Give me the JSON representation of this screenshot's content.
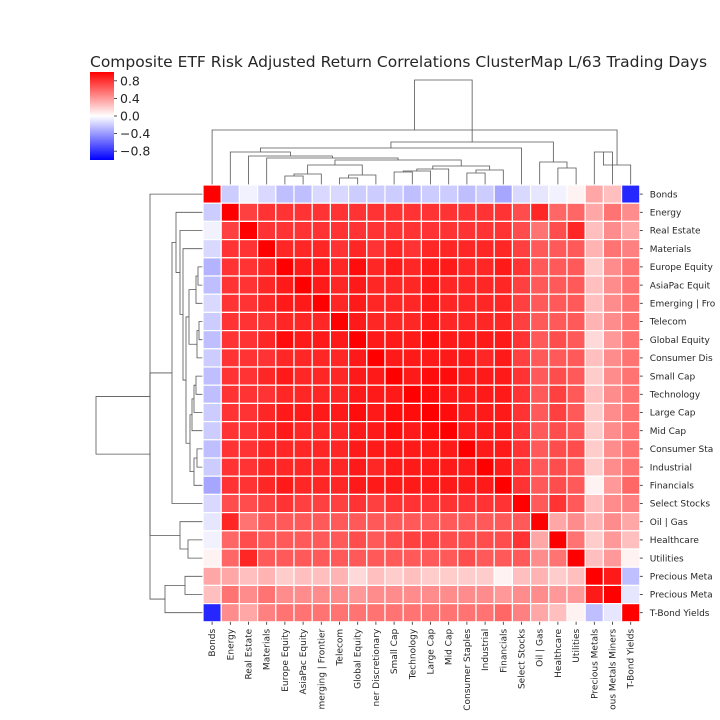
{
  "chart_data": {
    "type": "heatmap",
    "title": "Composite ETF Risk Adjusted Return Correlations ClusterMap L/63 Trading Days",
    "labels": [
      "Bonds",
      "Energy",
      "Real Estate",
      "Materials",
      "Europe Equity",
      "AsiaPac Equity",
      "Emerging | Frontier",
      "Telecom",
      "Global Equity",
      "Consumer Discretionary",
      "Small Cap",
      "Technology",
      "Large Cap",
      "Mid Cap",
      "Consumer Staples",
      "Industrial",
      "Financials",
      "Select Stocks",
      "Oil | Gas",
      "Healthcare",
      "Utilities",
      "Precious Metals",
      "Precious Metals Miners",
      "T-Bond Yields"
    ],
    "x_tick_labels": [
      "Bonds",
      "Energy",
      "Real Estate",
      "Materials",
      "Europe Equity",
      "AsiaPac Equity",
      "merging | Frontier",
      "Telecom",
      "Global Equity",
      "ner Discretionary",
      "Small Cap",
      "Technology",
      "Large Cap",
      "Mid Cap",
      "Consumer Staples",
      "Industrial",
      "Financials",
      "Select Stocks",
      "Oil | Gas",
      "Healthcare",
      "Utilities",
      "Precious Metals",
      "ous Metals Miners",
      "T-Bond Yields"
    ],
    "y_tick_labels": [
      "Bonds",
      "Energy",
      "Real Estate",
      "Materials",
      "Europe Equity",
      "AsiaPac Equit",
      "Emerging | Fro",
      "Telecom",
      "Global Equity",
      "Consumer Dis",
      "Small Cap",
      "Technology",
      "Large Cap",
      "Mid Cap",
      "Consumer Sta",
      "Industrial",
      "Financials",
      "Select Stocks",
      "Oil | Gas",
      "Healthcare",
      "Utilities",
      "Precious Meta",
      "Precious Meta",
      "T-Bond Yields"
    ],
    "colorbar": {
      "cmap": "bwr",
      "vmin": -1.0,
      "vmax": 1.0,
      "ticks": [
        0.8,
        0.4,
        0.0,
        -0.4,
        -0.8
      ],
      "tick_labels": [
        "0.8",
        "0.4",
        "0.0",
        "−0.4",
        "−0.8"
      ]
    },
    "values": [
      [
        1.0,
        -0.2,
        -0.05,
        -0.15,
        -0.25,
        -0.25,
        -0.15,
        -0.15,
        -0.2,
        -0.2,
        -0.2,
        -0.25,
        -0.2,
        -0.2,
        -0.25,
        -0.2,
        -0.35,
        -0.15,
        -0.1,
        -0.05,
        0.05,
        0.35,
        0.25,
        -0.85
      ],
      [
        -0.2,
        1.0,
        0.75,
        0.8,
        0.8,
        0.8,
        0.8,
        0.8,
        0.8,
        0.8,
        0.8,
        0.8,
        0.8,
        0.8,
        0.8,
        0.8,
        0.8,
        0.7,
        0.85,
        0.6,
        0.6,
        0.35,
        0.55,
        0.45
      ],
      [
        -0.05,
        0.75,
        1.0,
        0.8,
        0.8,
        0.8,
        0.8,
        0.8,
        0.8,
        0.8,
        0.8,
        0.8,
        0.8,
        0.8,
        0.8,
        0.8,
        0.8,
        0.7,
        0.55,
        0.7,
        0.85,
        0.25,
        0.45,
        0.35
      ],
      [
        -0.15,
        0.8,
        0.8,
        1.0,
        0.85,
        0.85,
        0.85,
        0.8,
        0.85,
        0.8,
        0.85,
        0.8,
        0.85,
        0.85,
        0.85,
        0.85,
        0.85,
        0.75,
        0.65,
        0.65,
        0.65,
        0.3,
        0.55,
        0.5
      ],
      [
        -0.3,
        0.8,
        0.8,
        0.85,
        1.0,
        0.9,
        0.9,
        0.85,
        0.95,
        0.85,
        0.9,
        0.85,
        0.9,
        0.9,
        0.85,
        0.85,
        0.9,
        0.8,
        0.65,
        0.65,
        0.65,
        0.2,
        0.45,
        0.55
      ],
      [
        -0.25,
        0.8,
        0.8,
        0.85,
        0.9,
        1.0,
        0.9,
        0.85,
        0.9,
        0.85,
        0.85,
        0.85,
        0.9,
        0.85,
        0.85,
        0.85,
        0.85,
        0.75,
        0.65,
        0.65,
        0.65,
        0.25,
        0.45,
        0.55
      ],
      [
        -0.15,
        0.8,
        0.8,
        0.85,
        0.9,
        0.9,
        1.0,
        0.85,
        0.9,
        0.85,
        0.85,
        0.85,
        0.9,
        0.85,
        0.85,
        0.85,
        0.85,
        0.75,
        0.65,
        0.65,
        0.65,
        0.25,
        0.45,
        0.55
      ],
      [
        -0.2,
        0.8,
        0.8,
        0.8,
        0.85,
        0.85,
        0.85,
        1.0,
        0.9,
        0.85,
        0.85,
        0.85,
        0.9,
        0.85,
        0.85,
        0.85,
        0.85,
        0.75,
        0.65,
        0.65,
        0.65,
        0.3,
        0.45,
        0.55
      ],
      [
        -0.25,
        0.8,
        0.8,
        0.85,
        0.95,
        0.9,
        0.9,
        0.9,
        1.0,
        0.9,
        0.9,
        0.9,
        0.95,
        0.9,
        0.9,
        0.9,
        0.9,
        0.8,
        0.65,
        0.7,
        0.65,
        0.15,
        0.4,
        0.55
      ],
      [
        -0.2,
        0.8,
        0.8,
        0.8,
        0.85,
        0.85,
        0.85,
        0.85,
        0.9,
        1.0,
        0.9,
        0.9,
        0.9,
        0.9,
        0.9,
        0.85,
        0.9,
        0.75,
        0.65,
        0.65,
        0.65,
        0.25,
        0.45,
        0.55
      ],
      [
        -0.25,
        0.8,
        0.8,
        0.85,
        0.9,
        0.85,
        0.85,
        0.85,
        0.9,
        0.9,
        1.0,
        0.9,
        0.95,
        0.95,
        0.9,
        0.9,
        0.9,
        0.8,
        0.65,
        0.7,
        0.65,
        0.2,
        0.45,
        0.55
      ],
      [
        -0.25,
        0.8,
        0.8,
        0.8,
        0.85,
        0.85,
        0.85,
        0.85,
        0.9,
        0.9,
        0.9,
        1.0,
        0.95,
        0.9,
        0.9,
        0.9,
        0.9,
        0.8,
        0.65,
        0.75,
        0.65,
        0.25,
        0.45,
        0.55
      ],
      [
        -0.2,
        0.8,
        0.8,
        0.85,
        0.9,
        0.9,
        0.9,
        0.9,
        0.95,
        0.9,
        0.95,
        0.95,
        1.0,
        0.95,
        0.9,
        0.9,
        0.9,
        0.8,
        0.65,
        0.75,
        0.65,
        0.2,
        0.45,
        0.55
      ],
      [
        -0.2,
        0.8,
        0.8,
        0.85,
        0.9,
        0.85,
        0.85,
        0.85,
        0.9,
        0.9,
        0.95,
        0.9,
        0.95,
        1.0,
        0.9,
        0.9,
        0.9,
        0.8,
        0.65,
        0.7,
        0.65,
        0.2,
        0.45,
        0.55
      ],
      [
        -0.25,
        0.8,
        0.8,
        0.85,
        0.85,
        0.85,
        0.85,
        0.85,
        0.9,
        0.9,
        0.9,
        0.9,
        0.9,
        0.9,
        1.0,
        0.9,
        0.9,
        0.8,
        0.65,
        0.7,
        0.7,
        0.2,
        0.45,
        0.55
      ],
      [
        -0.2,
        0.8,
        0.8,
        0.85,
        0.85,
        0.85,
        0.85,
        0.85,
        0.9,
        0.85,
        0.9,
        0.9,
        0.9,
        0.9,
        0.9,
        1.0,
        0.9,
        0.8,
        0.65,
        0.7,
        0.65,
        0.2,
        0.45,
        0.55
      ],
      [
        -0.35,
        0.8,
        0.8,
        0.85,
        0.9,
        0.85,
        0.85,
        0.85,
        0.9,
        0.9,
        0.9,
        0.9,
        0.9,
        0.9,
        0.9,
        0.9,
        1.0,
        0.8,
        0.65,
        0.7,
        0.65,
        0.05,
        0.4,
        0.6
      ],
      [
        -0.15,
        0.7,
        0.7,
        0.75,
        0.8,
        0.75,
        0.75,
        0.75,
        0.8,
        0.75,
        0.8,
        0.8,
        0.8,
        0.8,
        0.8,
        0.8,
        0.8,
        1.0,
        0.65,
        0.8,
        0.65,
        0.25,
        0.45,
        0.5
      ],
      [
        -0.1,
        0.85,
        0.55,
        0.65,
        0.65,
        0.65,
        0.65,
        0.65,
        0.65,
        0.65,
        0.65,
        0.65,
        0.65,
        0.65,
        0.65,
        0.65,
        0.65,
        0.65,
        1.0,
        0.35,
        0.45,
        0.3,
        0.45,
        0.35
      ],
      [
        -0.05,
        0.6,
        0.7,
        0.65,
        0.65,
        0.65,
        0.65,
        0.65,
        0.7,
        0.65,
        0.7,
        0.75,
        0.75,
        0.7,
        0.7,
        0.7,
        0.7,
        0.8,
        0.35,
        1.0,
        0.55,
        0.2,
        0.4,
        0.25
      ],
      [
        0.05,
        0.6,
        0.85,
        0.65,
        0.65,
        0.65,
        0.65,
        0.65,
        0.65,
        0.65,
        0.65,
        0.65,
        0.65,
        0.65,
        0.7,
        0.65,
        0.65,
        0.65,
        0.45,
        0.55,
        1.0,
        0.25,
        0.4,
        0.05
      ],
      [
        0.35,
        0.35,
        0.25,
        0.3,
        0.2,
        0.25,
        0.25,
        0.3,
        0.15,
        0.25,
        0.2,
        0.25,
        0.2,
        0.2,
        0.2,
        0.2,
        0.05,
        0.25,
        0.3,
        0.2,
        0.25,
        1.0,
        0.9,
        -0.25
      ],
      [
        0.25,
        0.55,
        0.45,
        0.55,
        0.45,
        0.45,
        0.45,
        0.45,
        0.4,
        0.45,
        0.45,
        0.45,
        0.45,
        0.45,
        0.45,
        0.45,
        0.4,
        0.45,
        0.45,
        0.4,
        0.4,
        0.9,
        1.0,
        -0.1
      ],
      [
        -0.85,
        0.45,
        0.35,
        0.5,
        0.55,
        0.55,
        0.55,
        0.55,
        0.55,
        0.55,
        0.55,
        0.55,
        0.55,
        0.55,
        0.55,
        0.55,
        0.6,
        0.5,
        0.35,
        0.25,
        0.05,
        -0.25,
        -0.1,
        1.0
      ]
    ]
  }
}
